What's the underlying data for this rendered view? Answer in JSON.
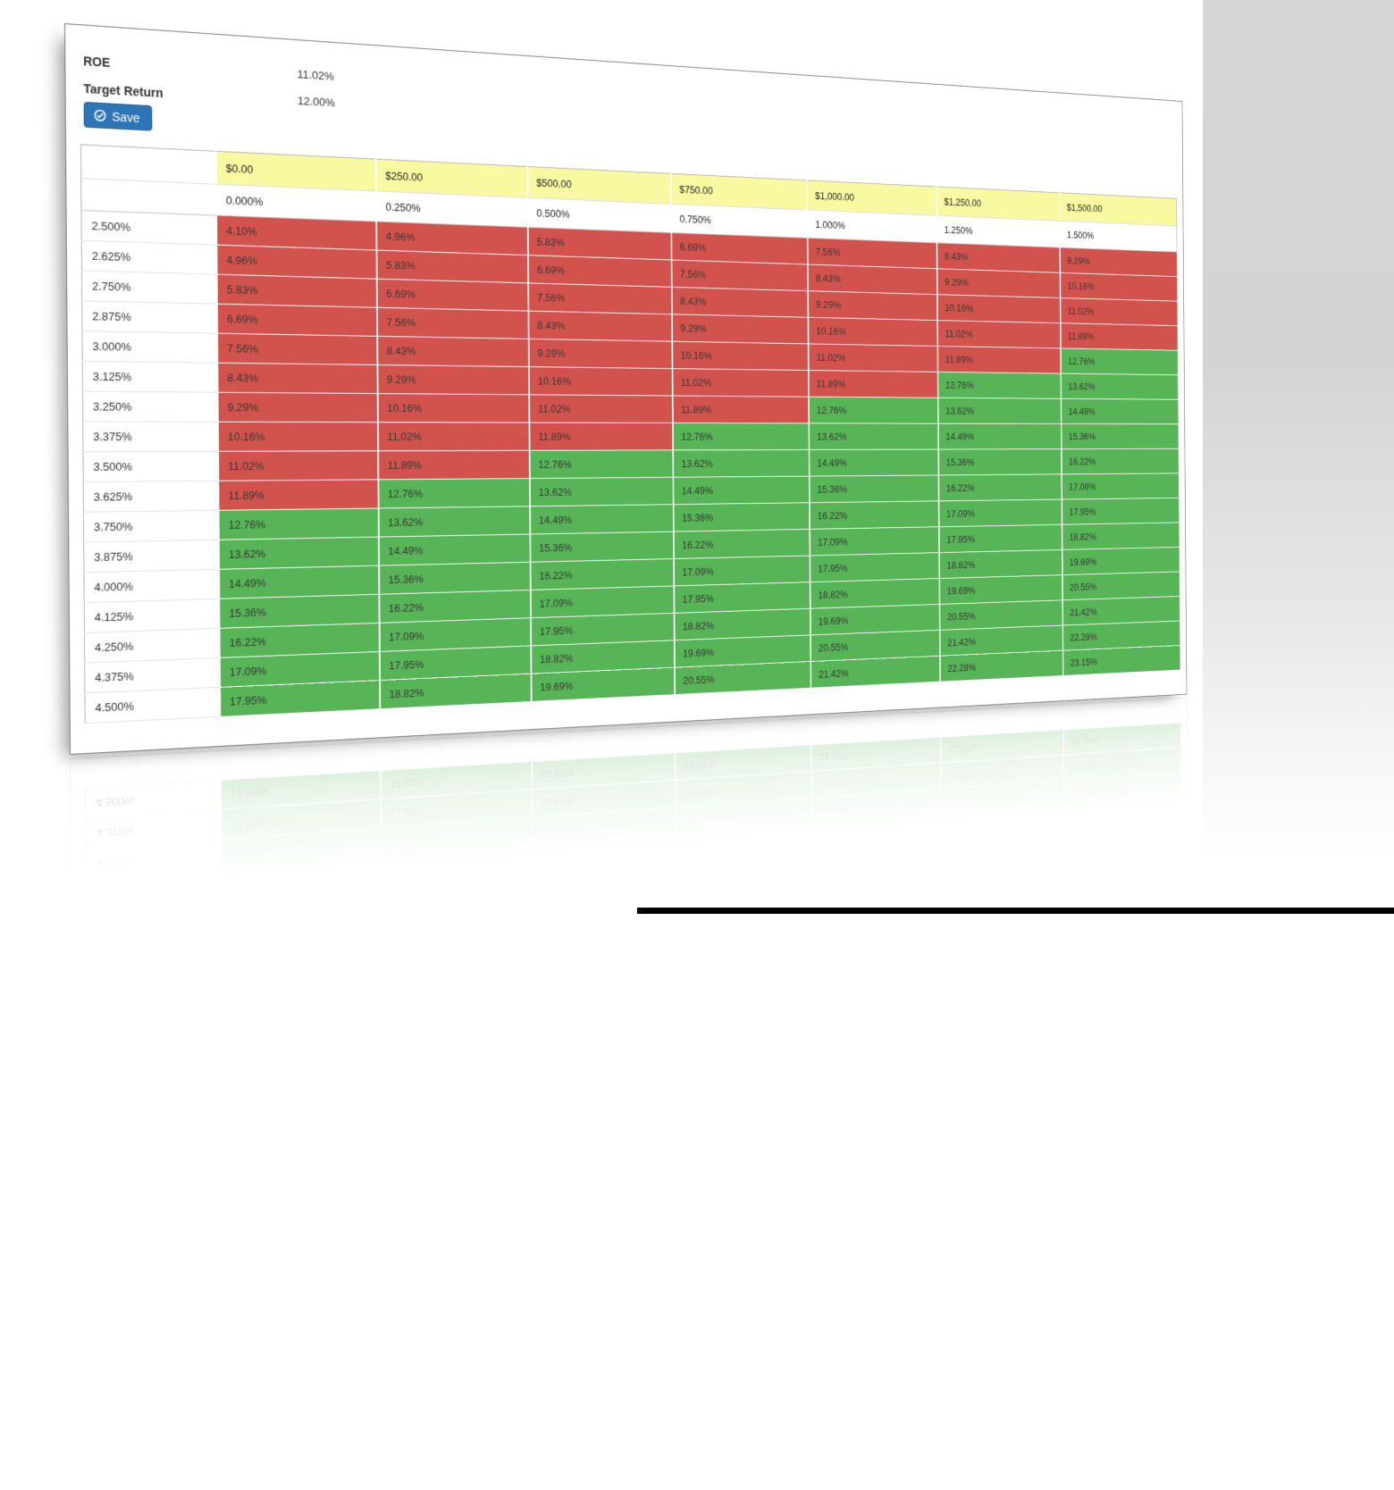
{
  "fields": {
    "roe": {
      "label": "ROE",
      "value": "11.02%"
    },
    "target_return": {
      "label": "Target Return",
      "value": "12.00%"
    }
  },
  "save_button": {
    "label": "Save"
  },
  "table": {
    "currency_headers": [
      "$0.00",
      "$250.00",
      "$500.00",
      "$750.00",
      "$1,000.00",
      "$1,250.00",
      "$1,500.00"
    ],
    "percent_headers": [
      "0.000%",
      "0.250%",
      "0.500%",
      "0.750%",
      "1.000%",
      "1.250%",
      "1.500%"
    ],
    "green_threshold": 12.0,
    "rows": [
      {
        "label": "2.500%",
        "values": [
          "4.10%",
          "4.96%",
          "5.83%",
          "6.69%",
          "7.56%",
          "8.43%",
          "9.29%"
        ]
      },
      {
        "label": "2.625%",
        "values": [
          "4.96%",
          "5.83%",
          "6.69%",
          "7.56%",
          "8.43%",
          "9.29%",
          "10.16%"
        ]
      },
      {
        "label": "2.750%",
        "values": [
          "5.83%",
          "6.69%",
          "7.56%",
          "8.43%",
          "9.29%",
          "10.16%",
          "11.02%"
        ]
      },
      {
        "label": "2.875%",
        "values": [
          "6.69%",
          "7.56%",
          "8.43%",
          "9.29%",
          "10.16%",
          "11.02%",
          "11.89%"
        ]
      },
      {
        "label": "3.000%",
        "values": [
          "7.56%",
          "8.43%",
          "9.29%",
          "10.16%",
          "11.02%",
          "11.89%",
          "12.76%"
        ]
      },
      {
        "label": "3.125%",
        "values": [
          "8.43%",
          "9.29%",
          "10.16%",
          "11.02%",
          "11.89%",
          "12.76%",
          "13.62%"
        ]
      },
      {
        "label": "3.250%",
        "values": [
          "9.29%",
          "10.16%",
          "11.02%",
          "11.89%",
          "12.76%",
          "13.62%",
          "14.49%"
        ]
      },
      {
        "label": "3.375%",
        "values": [
          "10.16%",
          "11.02%",
          "11.89%",
          "12.76%",
          "13.62%",
          "14.49%",
          "15.36%"
        ]
      },
      {
        "label": "3.500%",
        "values": [
          "11.02%",
          "11.89%",
          "12.76%",
          "13.62%",
          "14.49%",
          "15.36%",
          "16.22%"
        ]
      },
      {
        "label": "3.625%",
        "values": [
          "11.89%",
          "12.76%",
          "13.62%",
          "14.49%",
          "15.36%",
          "16.22%",
          "17.09%"
        ]
      },
      {
        "label": "3.750%",
        "values": [
          "12.76%",
          "13.62%",
          "14.49%",
          "15.36%",
          "16.22%",
          "17.09%",
          "17.95%"
        ]
      },
      {
        "label": "3.875%",
        "values": [
          "13.62%",
          "14.49%",
          "15.36%",
          "16.22%",
          "17.09%",
          "17.95%",
          "18.82%"
        ]
      },
      {
        "label": "4.000%",
        "values": [
          "14.49%",
          "15.36%",
          "16.22%",
          "17.09%",
          "17.95%",
          "18.82%",
          "19.69%"
        ]
      },
      {
        "label": "4.125%",
        "values": [
          "15.36%",
          "16.22%",
          "17.09%",
          "17.95%",
          "18.82%",
          "19.69%",
          "20.55%"
        ]
      },
      {
        "label": "4.250%",
        "values": [
          "16.22%",
          "17.09%",
          "17.95%",
          "18.82%",
          "19.69%",
          "20.55%",
          "21.42%"
        ]
      },
      {
        "label": "4.375%",
        "values": [
          "17.09%",
          "17.95%",
          "18.82%",
          "19.69%",
          "20.55%",
          "21.42%",
          "22.28%"
        ]
      },
      {
        "label": "4.500%",
        "values": [
          "17.95%",
          "18.82%",
          "19.69%",
          "20.55%",
          "21.42%",
          "22.28%",
          "23.15%"
        ]
      }
    ]
  },
  "colors": {
    "positive_green": "#57b457",
    "negative_red": "#d2534d",
    "header_yellow": "#f9f9a2",
    "button_blue": "#2e75b6"
  }
}
